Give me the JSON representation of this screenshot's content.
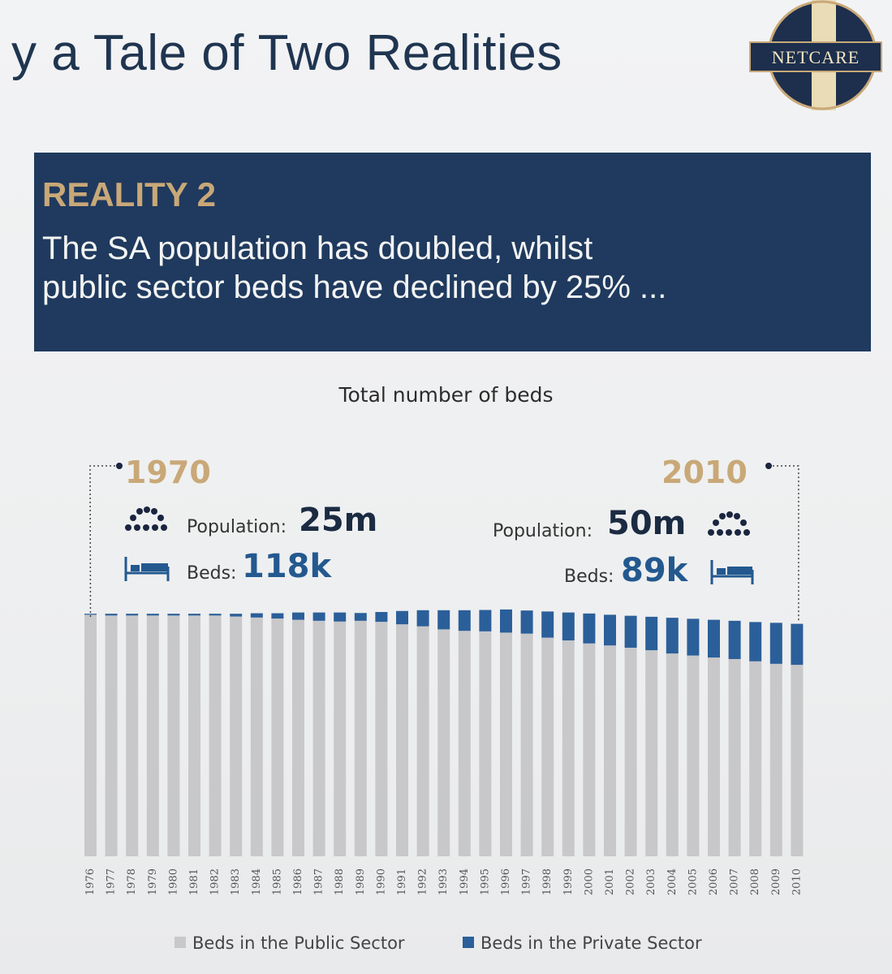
{
  "header": {
    "title": "y a Tale of Two Realities",
    "logo_text": "NETCARE"
  },
  "banner": {
    "heading": "REALITY 2",
    "text_line1": "The SA population has doubled, whilst",
    "text_line2": "public sector beds have declined by 25% ..."
  },
  "left_callout": {
    "year": "1970",
    "population_label": "Population:",
    "population_value": "25m",
    "beds_label": "Beds:",
    "beds_value": "118k",
    "people_icon": "crowd-icon",
    "bed_icon": "bed-icon"
  },
  "right_callout": {
    "year": "2010",
    "population_label": "Population:",
    "population_value": "50m",
    "beds_label": "Beds:",
    "beds_value": "89k",
    "people_icon": "crowd-icon",
    "bed_icon": "bed-icon"
  },
  "colors": {
    "public": "#c8c8ca",
    "private": "#2b5f99",
    "navy": "#1f3a5e",
    "gold": "#c9a878"
  },
  "chart_data": {
    "type": "bar",
    "stacked": true,
    "title": "Total number of beds",
    "categories": [
      "1976",
      "1977",
      "1978",
      "1979",
      "1980",
      "1981",
      "1982",
      "1983",
      "1984",
      "1985",
      "1986",
      "1987",
      "1988",
      "1989",
      "1990",
      "1991",
      "1992",
      "1993",
      "1994",
      "1995",
      "1996",
      "1997",
      "1998",
      "1999",
      "2000",
      "2001",
      "2002",
      "2003",
      "2004",
      "2005",
      "2006",
      "2007",
      "2008",
      "2009",
      "2010"
    ],
    "ylim": [
      0,
      100
    ],
    "series": [
      {
        "name": "Beds in the Public Sector",
        "color": "#c8c8ca",
        "values": [
          96.0,
          95.7,
          95.7,
          95.7,
          95.7,
          95.7,
          95.7,
          95.3,
          94.9,
          94.5,
          94.0,
          93.6,
          93.3,
          93.6,
          93.2,
          92.2,
          91.4,
          90.2,
          89.6,
          89.4,
          88.9,
          88.5,
          86.9,
          85.8,
          84.6,
          83.8,
          82.9,
          81.9,
          80.6,
          79.8,
          79.0,
          78.4,
          77.5,
          76.5,
          76.1
        ]
      },
      {
        "name": "Beds in the Private Sector",
        "color": "#2b5f99",
        "values": [
          0.4,
          0.7,
          0.7,
          0.7,
          0.7,
          0.7,
          0.7,
          1.1,
          1.7,
          2.1,
          2.9,
          3.3,
          3.6,
          3.1,
          3.9,
          5.3,
          6.4,
          7.6,
          8.2,
          8.5,
          9.2,
          9.2,
          10.4,
          11.1,
          11.9,
          12.2,
          12.7,
          13.3,
          14.2,
          14.6,
          15.0,
          15.2,
          15.6,
          16.3,
          16.3
        ]
      }
    ],
    "legend": "bottom",
    "grid": false
  }
}
